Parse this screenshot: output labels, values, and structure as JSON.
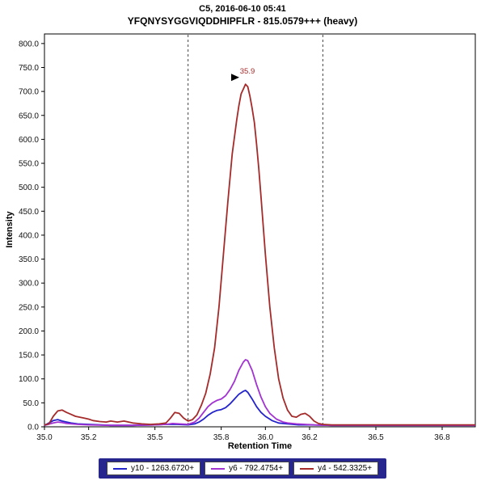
{
  "chart_data": {
    "type": "line",
    "title": "C5, 2016-06-10 05:41",
    "subtitle": "YFQNYSYGGVIQDDHIPFLR - 815.0579+++ (heavy)",
    "xlabel": "Retention Time",
    "ylabel": "Intensity",
    "xlim": [
      35.0,
      36.95
    ],
    "ylim": [
      0,
      820
    ],
    "xticks": {
      "values": [
        35.0,
        35.2,
        35.5,
        35.8,
        36.0,
        36.2,
        36.5,
        36.8
      ],
      "labels": [
        "35.0",
        "35.2",
        "35.5",
        "35.8",
        "36.0",
        "36.2",
        "36.5",
        "36.8"
      ]
    },
    "yticks": {
      "values": [
        0,
        50,
        100,
        150,
        200,
        250,
        300,
        350,
        400,
        450,
        500,
        550,
        600,
        650,
        700,
        750,
        800
      ],
      "labels": [
        "0.0",
        "50.0",
        "100.0",
        "150.0",
        "200.0",
        "250.0",
        "300.0",
        "350.0",
        "400.0",
        "450.0",
        "500.0",
        "550.0",
        "600.0",
        "650.0",
        "700.0",
        "750.0",
        "800.0"
      ]
    },
    "grid": false,
    "legend_position": "bottom",
    "boundaries": [
      35.65,
      36.26
    ],
    "annotation": {
      "text": "35.9",
      "x": 35.9,
      "y": 715,
      "color": "#a52a2a"
    },
    "series": [
      {
        "name": "y10 - 1263.6720+",
        "color": "#2323cc",
        "points": [
          [
            35.0,
            3
          ],
          [
            35.02,
            8
          ],
          [
            35.04,
            13
          ],
          [
            35.06,
            15
          ],
          [
            35.08,
            12
          ],
          [
            35.1,
            10
          ],
          [
            35.12,
            8
          ],
          [
            35.15,
            6
          ],
          [
            35.2,
            5
          ],
          [
            35.3,
            3
          ],
          [
            35.4,
            3
          ],
          [
            35.5,
            4
          ],
          [
            35.55,
            5
          ],
          [
            35.6,
            5
          ],
          [
            35.65,
            4
          ],
          [
            35.68,
            6
          ],
          [
            35.7,
            10
          ],
          [
            35.72,
            16
          ],
          [
            35.74,
            24
          ],
          [
            35.76,
            30
          ],
          [
            35.78,
            34
          ],
          [
            35.8,
            36
          ],
          [
            35.82,
            40
          ],
          [
            35.84,
            48
          ],
          [
            35.86,
            58
          ],
          [
            35.88,
            68
          ],
          [
            35.9,
            74
          ],
          [
            35.91,
            76
          ],
          [
            35.92,
            72
          ],
          [
            35.94,
            58
          ],
          [
            35.96,
            42
          ],
          [
            35.98,
            30
          ],
          [
            36.0,
            22
          ],
          [
            36.03,
            13
          ],
          [
            36.06,
            8
          ],
          [
            36.1,
            6
          ],
          [
            36.15,
            4
          ],
          [
            36.2,
            4
          ],
          [
            36.3,
            3
          ],
          [
            36.5,
            3
          ],
          [
            36.95,
            3
          ]
        ]
      },
      {
        "name": "y6 - 792.4754+",
        "color": "#a233d2",
        "points": [
          [
            35.0,
            3
          ],
          [
            35.04,
            8
          ],
          [
            35.06,
            10
          ],
          [
            35.08,
            9
          ],
          [
            35.1,
            7
          ],
          [
            35.15,
            5
          ],
          [
            35.2,
            4
          ],
          [
            35.3,
            3
          ],
          [
            35.4,
            3
          ],
          [
            35.5,
            4
          ],
          [
            35.55,
            5
          ],
          [
            35.58,
            7
          ],
          [
            35.61,
            6
          ],
          [
            35.65,
            5
          ],
          [
            35.68,
            10
          ],
          [
            35.7,
            18
          ],
          [
            35.72,
            30
          ],
          [
            35.74,
            42
          ],
          [
            35.76,
            50
          ],
          [
            35.78,
            55
          ],
          [
            35.8,
            58
          ],
          [
            35.82,
            65
          ],
          [
            35.84,
            78
          ],
          [
            35.86,
            95
          ],
          [
            35.88,
            118
          ],
          [
            35.9,
            135
          ],
          [
            35.91,
            140
          ],
          [
            35.92,
            138
          ],
          [
            35.94,
            118
          ],
          [
            35.96,
            88
          ],
          [
            35.98,
            62
          ],
          [
            36.0,
            42
          ],
          [
            36.02,
            28
          ],
          [
            36.05,
            16
          ],
          [
            36.08,
            10
          ],
          [
            36.1,
            8
          ],
          [
            36.14,
            6
          ],
          [
            36.18,
            5
          ],
          [
            36.22,
            4
          ],
          [
            36.3,
            3
          ],
          [
            36.5,
            3
          ],
          [
            36.95,
            3
          ]
        ]
      },
      {
        "name": "y4 - 542.3325+",
        "color": "#a52a2a",
        "points": [
          [
            35.0,
            4
          ],
          [
            35.02,
            6
          ],
          [
            35.04,
            22
          ],
          [
            35.06,
            33
          ],
          [
            35.08,
            35
          ],
          [
            35.1,
            30
          ],
          [
            35.12,
            26
          ],
          [
            35.14,
            22
          ],
          [
            35.16,
            20
          ],
          [
            35.18,
            18
          ],
          [
            35.2,
            16
          ],
          [
            35.22,
            13
          ],
          [
            35.25,
            11
          ],
          [
            35.28,
            10
          ],
          [
            35.3,
            12
          ],
          [
            35.33,
            10
          ],
          [
            35.36,
            12
          ],
          [
            35.4,
            8
          ],
          [
            35.44,
            6
          ],
          [
            35.48,
            5
          ],
          [
            35.52,
            6
          ],
          [
            35.55,
            8
          ],
          [
            35.57,
            18
          ],
          [
            35.59,
            30
          ],
          [
            35.61,
            28
          ],
          [
            35.63,
            18
          ],
          [
            35.65,
            12
          ],
          [
            35.67,
            15
          ],
          [
            35.69,
            25
          ],
          [
            35.71,
            45
          ],
          [
            35.73,
            70
          ],
          [
            35.75,
            110
          ],
          [
            35.77,
            165
          ],
          [
            35.79,
            250
          ],
          [
            35.81,
            360
          ],
          [
            35.83,
            470
          ],
          [
            35.85,
            570
          ],
          [
            35.87,
            640
          ],
          [
            35.88,
            670
          ],
          [
            35.89,
            695
          ],
          [
            35.9,
            705
          ],
          [
            35.91,
            715
          ],
          [
            35.92,
            710
          ],
          [
            35.93,
            690
          ],
          [
            35.94,
            665
          ],
          [
            35.95,
            635
          ],
          [
            35.96,
            590
          ],
          [
            35.97,
            540
          ],
          [
            35.98,
            480
          ],
          [
            36.0,
            360
          ],
          [
            36.02,
            250
          ],
          [
            36.04,
            165
          ],
          [
            36.06,
            100
          ],
          [
            36.08,
            60
          ],
          [
            36.1,
            35
          ],
          [
            36.12,
            22
          ],
          [
            36.14,
            20
          ],
          [
            36.16,
            26
          ],
          [
            36.18,
            28
          ],
          [
            36.2,
            22
          ],
          [
            36.22,
            12
          ],
          [
            36.24,
            7
          ],
          [
            36.26,
            5
          ],
          [
            36.3,
            4
          ],
          [
            36.4,
            4
          ],
          [
            36.5,
            4
          ],
          [
            36.7,
            4
          ],
          [
            36.95,
            4
          ]
        ]
      }
    ]
  },
  "legend": {
    "background": "#26268e",
    "items": [
      {
        "label": "y10 - 1263.6720+",
        "color": "#2323cc"
      },
      {
        "label": "y6 - 792.4754+",
        "color": "#a233d2"
      },
      {
        "label": "y4 - 542.3325+",
        "color": "#a52a2a"
      }
    ]
  }
}
